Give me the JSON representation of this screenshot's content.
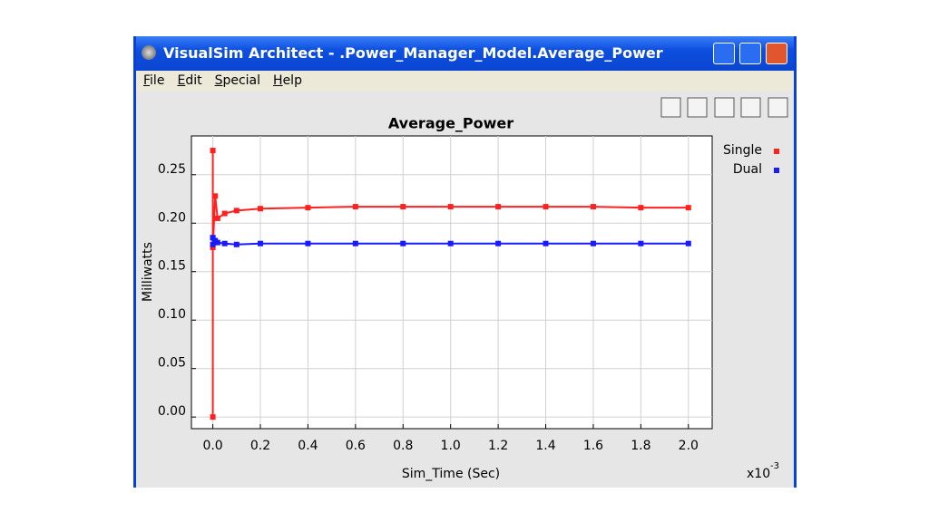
{
  "window": {
    "title": "VisualSim Architect - .Power_Manager_Model.Average_Power",
    "menu": [
      "File",
      "Edit",
      "Special",
      "Help"
    ]
  },
  "chart_data": {
    "type": "line",
    "title": "Average_Power",
    "x_label": "Sim_Time (Sec)",
    "y_label": "Milliwatts",
    "x_multiplier": "x10",
    "x_multiplier_exponent": "-3",
    "x": [
      0,
      0,
      0,
      0.01,
      0.02,
      0.05,
      0.1,
      0.2,
      0.4,
      0.6,
      0.8,
      1.0,
      1.2,
      1.4,
      1.6,
      1.8,
      2.0
    ],
    "series": [
      {
        "name": "Single",
        "color": "#ff2020",
        "values": [
          0,
          0.275,
          0.175,
          0.228,
          0.205,
          0.21,
          0.213,
          0.215,
          0.216,
          0.217,
          0.217,
          0.217,
          0.217,
          0.217,
          0.217,
          0.216,
          0.216
        ]
      },
      {
        "name": "Dual",
        "color": "#1a1aff",
        "values": [
          0.185,
          0.185,
          0.178,
          0.182,
          0.18,
          0.179,
          0.178,
          0.179,
          0.179,
          0.179,
          0.179,
          0.179,
          0.179,
          0.179,
          0.179,
          0.179,
          0.179
        ]
      }
    ],
    "xlim": [
      -0.09,
      2.1
    ],
    "ylim": [
      -0.012,
      0.29
    ],
    "xticks": [
      {
        "value": 0,
        "label": "0.0"
      },
      {
        "value": 0.2,
        "label": "0.2"
      },
      {
        "value": 0.4,
        "label": "0.4"
      },
      {
        "value": 0.6,
        "label": "0.6"
      },
      {
        "value": 0.8,
        "label": "0.8"
      },
      {
        "value": 1.0,
        "label": "1.0"
      },
      {
        "value": 1.2,
        "label": "1.2"
      },
      {
        "value": 1.4,
        "label": "1.4"
      },
      {
        "value": 1.6,
        "label": "1.6"
      },
      {
        "value": 1.8,
        "label": "1.8"
      },
      {
        "value": 2.0,
        "label": "2.0"
      }
    ],
    "yticks": [
      {
        "value": 0,
        "label": "0.00"
      },
      {
        "value": 0.05,
        "label": "0.05"
      },
      {
        "value": 0.1,
        "label": "0.10"
      },
      {
        "value": 0.15,
        "label": "0.15"
      },
      {
        "value": 0.2,
        "label": "0.20"
      },
      {
        "value": 0.25,
        "label": "0.25"
      }
    ],
    "grid": true,
    "legend": "top-right"
  }
}
